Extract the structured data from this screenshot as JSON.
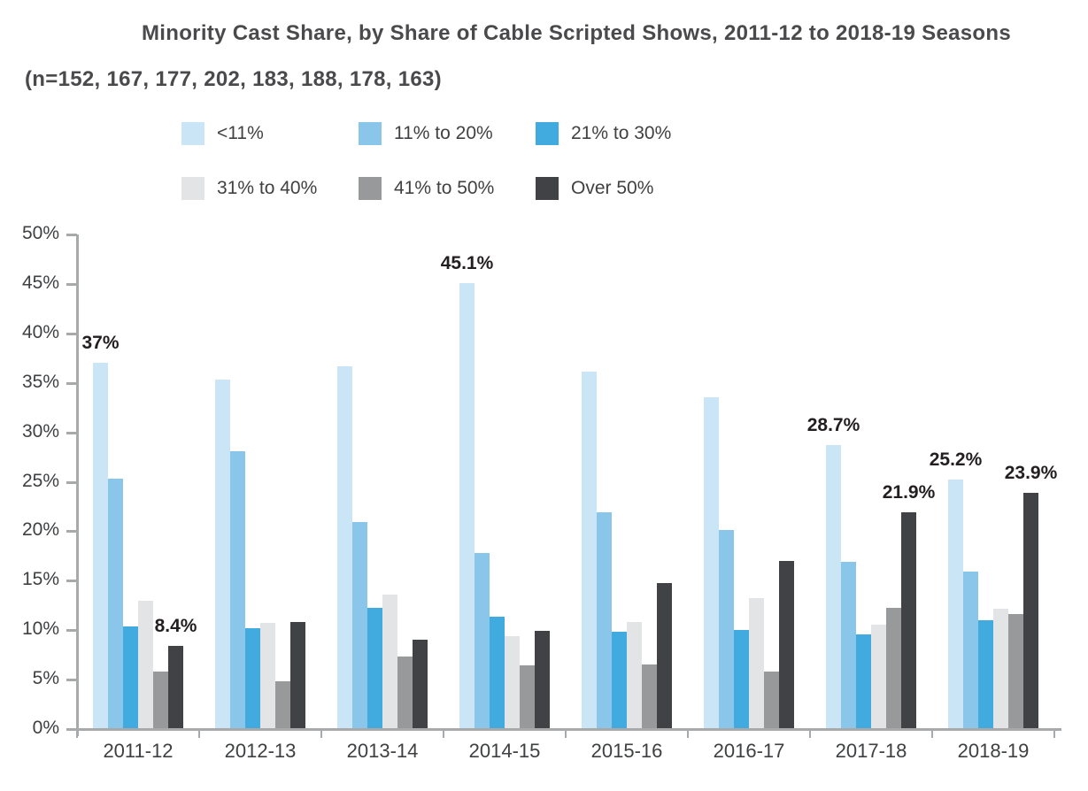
{
  "chart_data": {
    "type": "bar",
    "title": "Minority Cast Share, by Share of Cable Scripted Shows, 2011-12 to 2018-19 Seasons",
    "subtitle": "(n=152, 167, 177, 202, 183, 188, 178, 163)",
    "categories": [
      "2011-12",
      "2012-13",
      "2013-14",
      "2014-15",
      "2015-16",
      "2016-17",
      "2017-18",
      "2018-19"
    ],
    "series": [
      {
        "name": "<11%",
        "color": "#c9e5f6",
        "values": [
          37.0,
          35.3,
          36.7,
          45.1,
          36.1,
          33.5,
          28.7,
          25.2
        ],
        "point_labels": [
          "37%",
          null,
          null,
          "45.1%",
          null,
          null,
          "28.7%",
          "25.2%"
        ]
      },
      {
        "name": "11% to 20%",
        "color": "#8ac6ea",
        "values": [
          25.3,
          28.1,
          20.9,
          17.8,
          21.9,
          20.1,
          16.9,
          15.9
        ],
        "point_labels": [
          null,
          null,
          null,
          null,
          null,
          null,
          null,
          null
        ]
      },
      {
        "name": "21% to 30%",
        "color": "#41aadf",
        "values": [
          10.4,
          10.2,
          12.3,
          11.4,
          9.8,
          10.0,
          9.6,
          11.0
        ],
        "point_labels": [
          null,
          null,
          null,
          null,
          null,
          null,
          null,
          null
        ]
      },
      {
        "name": "31% to 40%",
        "color": "#e3e4e6",
        "values": [
          13.0,
          10.7,
          13.6,
          9.4,
          10.8,
          13.2,
          10.6,
          12.2
        ],
        "point_labels": [
          null,
          null,
          null,
          null,
          null,
          null,
          null,
          null
        ]
      },
      {
        "name": "41% to 50%",
        "color": "#97999b",
        "values": [
          5.8,
          4.8,
          7.3,
          6.4,
          6.5,
          5.8,
          12.3,
          11.6
        ],
        "point_labels": [
          null,
          null,
          null,
          null,
          null,
          null,
          null,
          null
        ]
      },
      {
        "name": "Over 50%",
        "color": "#404245",
        "values": [
          8.4,
          10.8,
          9.0,
          9.9,
          14.8,
          17.0,
          21.9,
          23.9
        ],
        "point_labels": [
          "8.4%",
          null,
          null,
          null,
          null,
          null,
          "21.9%",
          "23.9%"
        ]
      }
    ],
    "y_axis": {
      "min": 0,
      "max": 50,
      "step": 5,
      "tick_labels": [
        "0%",
        "5%",
        "10%",
        "15%",
        "20%",
        "25%",
        "30%",
        "35%",
        "40%",
        "45%",
        "50%"
      ]
    },
    "grid": false,
    "legend_position": "top",
    "colors": {
      "title_text": "#4a4a4c",
      "axis": "#a7a9ab",
      "tick_text": "#3f4042",
      "data_label_text": "#231f20"
    }
  }
}
